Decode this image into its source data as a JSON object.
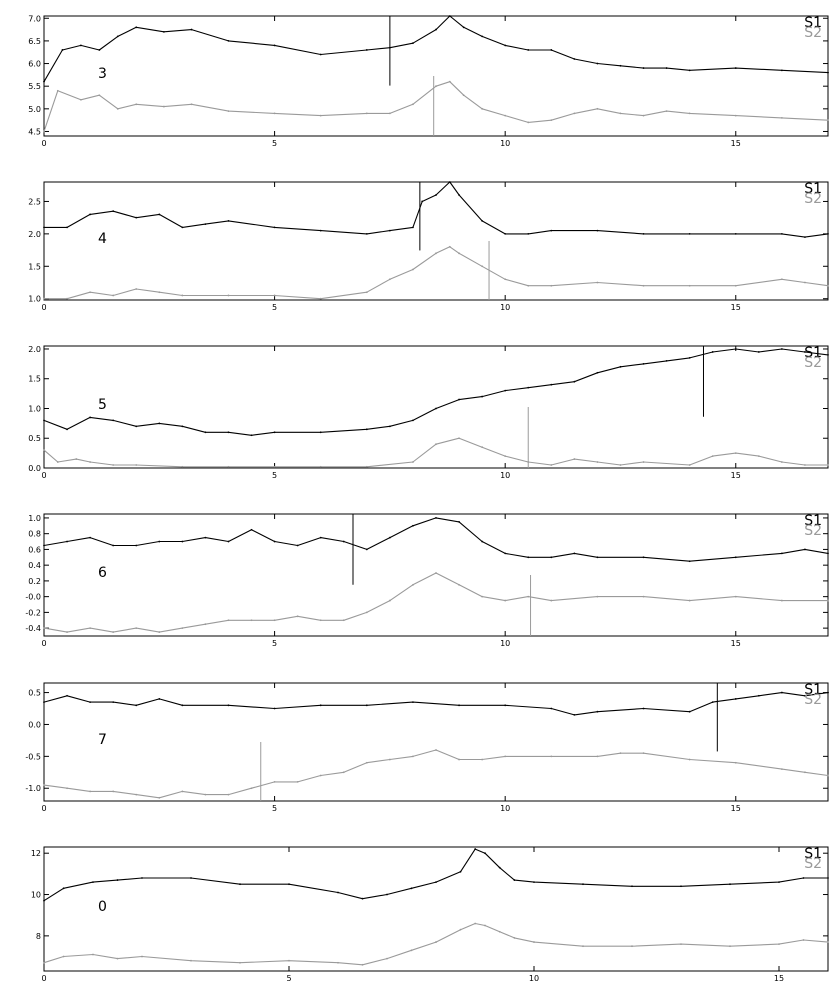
{
  "chart_data": [
    {
      "type": "line",
      "panel_label": "3",
      "xlim": [
        0,
        17
      ],
      "ylim": [
        4.4,
        7.05
      ],
      "x_ticks": [
        0,
        5,
        10,
        15
      ],
      "y_ticks": [
        4.5,
        5.0,
        5.5,
        6.0,
        6.5,
        7.0
      ],
      "x_tick_labels": [
        "0",
        "5",
        "10",
        "15"
      ],
      "y_tick_labels": [
        "4.5",
        "5.0",
        "5.5",
        "6.0",
        "6.5",
        "7.0"
      ],
      "grid": false,
      "legend_position": "top-right",
      "series": [
        {
          "name": "S1",
          "color": "#000000",
          "marker_x": 7.5,
          "x": [
            0,
            0.4,
            0.8,
            1.2,
            1.6,
            2.0,
            2.6,
            3.2,
            4.0,
            5.0,
            6.0,
            7.0,
            7.5,
            8.0,
            8.5,
            8.8,
            9.1,
            9.5,
            10.0,
            10.5,
            11.0,
            11.5,
            12.0,
            12.5,
            13.0,
            13.5,
            14.0,
            15.0,
            16.0,
            17.0
          ],
          "values": [
            5.6,
            6.3,
            6.4,
            6.3,
            6.6,
            6.8,
            6.7,
            6.75,
            6.5,
            6.4,
            6.2,
            6.3,
            6.35,
            6.45,
            6.75,
            7.05,
            6.8,
            6.6,
            6.4,
            6.3,
            6.3,
            6.1,
            6.0,
            5.95,
            5.9,
            5.9,
            5.85,
            5.9,
            5.85,
            5.8
          ]
        },
        {
          "name": "S2",
          "color": "#9a9a9a",
          "marker_x": 8.45,
          "x": [
            0,
            0.3,
            0.8,
            1.2,
            1.6,
            2.0,
            2.6,
            3.2,
            4.0,
            5.0,
            6.0,
            7.0,
            7.5,
            8.0,
            8.5,
            8.8,
            9.1,
            9.5,
            10.0,
            10.5,
            11.0,
            11.5,
            12.0,
            12.5,
            13.0,
            13.5,
            14.0,
            15.0,
            16.0,
            17.0
          ],
          "values": [
            4.5,
            5.4,
            5.2,
            5.3,
            5.0,
            5.1,
            5.05,
            5.1,
            4.95,
            4.9,
            4.85,
            4.9,
            4.9,
            5.1,
            5.5,
            5.6,
            5.3,
            5.0,
            4.85,
            4.7,
            4.75,
            4.9,
            5.0,
            4.9,
            4.85,
            4.95,
            4.9,
            4.85,
            4.8,
            4.75
          ]
        }
      ]
    },
    {
      "type": "line",
      "panel_label": "4",
      "xlim": [
        0,
        17
      ],
      "ylim": [
        0.98,
        2.8
      ],
      "x_ticks": [
        0,
        5,
        10,
        15
      ],
      "y_ticks": [
        1.0,
        1.5,
        2.0,
        2.5
      ],
      "x_tick_labels": [
        "0",
        "5",
        "10",
        "15"
      ],
      "y_tick_labels": [
        "1.0",
        "1.5",
        "2.0",
        "2.5"
      ],
      "grid": false,
      "legend_position": "top-right",
      "series": [
        {
          "name": "S1",
          "color": "#000000",
          "marker_x": 8.15,
          "x": [
            0,
            0.5,
            1.0,
            1.5,
            2.0,
            2.5,
            3.0,
            3.5,
            4.0,
            5.0,
            6.0,
            7.0,
            7.5,
            8.0,
            8.2,
            8.5,
            8.8,
            9.0,
            9.5,
            10.0,
            10.5,
            11.0,
            12.0,
            13.0,
            14.0,
            15.0,
            16.0,
            16.5,
            17.0
          ],
          "values": [
            2.1,
            2.1,
            2.3,
            2.35,
            2.25,
            2.3,
            2.1,
            2.15,
            2.2,
            2.1,
            2.05,
            2.0,
            2.05,
            2.1,
            2.5,
            2.6,
            2.8,
            2.6,
            2.2,
            2.0,
            2.0,
            2.05,
            2.05,
            2.0,
            2.0,
            2.0,
            2.0,
            1.95,
            2.0
          ]
        },
        {
          "name": "S2",
          "color": "#9a9a9a",
          "marker_x": 9.65,
          "x": [
            0,
            0.5,
            1.0,
            1.5,
            2.0,
            2.5,
            3.0,
            4.0,
            5.0,
            6.0,
            7.0,
            7.5,
            8.0,
            8.5,
            8.8,
            9.0,
            9.5,
            10.0,
            10.5,
            11.0,
            12.0,
            13.0,
            14.0,
            15.0,
            16.0,
            16.5,
            17.0
          ],
          "values": [
            1.0,
            1.0,
            1.1,
            1.05,
            1.15,
            1.1,
            1.05,
            1.05,
            1.05,
            1.0,
            1.1,
            1.3,
            1.45,
            1.7,
            1.8,
            1.7,
            1.5,
            1.3,
            1.2,
            1.2,
            1.25,
            1.2,
            1.2,
            1.2,
            1.3,
            1.25,
            1.2
          ]
        }
      ]
    },
    {
      "type": "line",
      "panel_label": "5",
      "xlim": [
        0,
        17
      ],
      "ylim": [
        0,
        2.05
      ],
      "x_ticks": [
        0,
        5,
        10,
        15
      ],
      "y_ticks": [
        0.0,
        0.5,
        1.0,
        1.5,
        2.0
      ],
      "x_tick_labels": [
        "0",
        "5",
        "10",
        "15"
      ],
      "y_tick_labels": [
        "0.0",
        "0.5",
        "1.0",
        "1.5",
        "2.0"
      ],
      "grid": false,
      "legend_position": "top-right",
      "series": [
        {
          "name": "S1",
          "color": "#000000",
          "marker_x": 14.3,
          "x": [
            0,
            0.5,
            1.0,
            1.5,
            2.0,
            2.5,
            3.0,
            3.5,
            4.0,
            4.5,
            5.0,
            6.0,
            7.0,
            7.5,
            8.0,
            8.5,
            9.0,
            9.5,
            10.0,
            10.5,
            11.0,
            11.5,
            12.0,
            12.5,
            13.0,
            13.5,
            14.0,
            14.5,
            15.0,
            15.5,
            16.0,
            16.5,
            17.0
          ],
          "values": [
            0.8,
            0.65,
            0.85,
            0.8,
            0.7,
            0.75,
            0.7,
            0.6,
            0.6,
            0.55,
            0.6,
            0.6,
            0.65,
            0.7,
            0.8,
            1.0,
            1.15,
            1.2,
            1.3,
            1.35,
            1.4,
            1.45,
            1.6,
            1.7,
            1.75,
            1.8,
            1.85,
            1.95,
            2.0,
            1.95,
            2.0,
            1.95,
            1.9
          ]
        },
        {
          "name": "S2",
          "color": "#9a9a9a",
          "marker_x": 10.5,
          "x": [
            0,
            0.3,
            0.7,
            1.0,
            1.5,
            2.0,
            3.0,
            4.0,
            5.0,
            6.0,
            7.0,
            8.0,
            8.5,
            9.0,
            9.5,
            10.0,
            10.5,
            11.0,
            11.5,
            12.0,
            12.5,
            13.0,
            14.0,
            14.5,
            15.0,
            15.5,
            16.0,
            16.5,
            17.0
          ],
          "values": [
            0.3,
            0.1,
            0.15,
            0.1,
            0.05,
            0.05,
            0.02,
            0.02,
            0.02,
            0.02,
            0.02,
            0.1,
            0.4,
            0.5,
            0.35,
            0.2,
            0.1,
            0.05,
            0.15,
            0.1,
            0.05,
            0.1,
            0.05,
            0.2,
            0.25,
            0.2,
            0.1,
            0.05,
            0.05
          ]
        }
      ]
    },
    {
      "type": "line",
      "panel_label": "6",
      "xlim": [
        0,
        17
      ],
      "ylim": [
        -0.5,
        1.05
      ],
      "x_ticks": [
        0,
        5,
        10,
        15
      ],
      "y_ticks": [
        -0.4,
        -0.2,
        0.0,
        0.2,
        0.4,
        0.6,
        0.8,
        1.0
      ],
      "x_tick_labels": [
        "0",
        "5",
        "10",
        "15"
      ],
      "y_tick_labels": [
        "-0.4",
        "-0.2",
        "-0.0",
        "0.2",
        "0.4",
        "0.6",
        "0.8",
        "1.0"
      ],
      "grid": false,
      "legend_position": "top-right",
      "series": [
        {
          "name": "S1",
          "color": "#000000",
          "marker_x": 6.7,
          "x": [
            0,
            0.5,
            1.0,
            1.5,
            2.0,
            2.5,
            3.0,
            3.5,
            4.0,
            4.5,
            5.0,
            5.5,
            6.0,
            6.5,
            7.0,
            7.5,
            8.0,
            8.5,
            9.0,
            9.5,
            10.0,
            10.5,
            11.0,
            11.5,
            12.0,
            13.0,
            14.0,
            15.0,
            16.0,
            16.5,
            17.0
          ],
          "values": [
            0.65,
            0.7,
            0.75,
            0.65,
            0.65,
            0.7,
            0.7,
            0.75,
            0.7,
            0.85,
            0.7,
            0.65,
            0.75,
            0.7,
            0.6,
            0.75,
            0.9,
            1.0,
            0.95,
            0.7,
            0.55,
            0.5,
            0.5,
            0.55,
            0.5,
            0.5,
            0.45,
            0.5,
            0.55,
            0.6,
            0.55
          ]
        },
        {
          "name": "S2",
          "color": "#9a9a9a",
          "marker_x": 10.55,
          "x": [
            0,
            0.5,
            1.0,
            1.5,
            2.0,
            2.5,
            3.0,
            3.5,
            4.0,
            4.5,
            5.0,
            5.5,
            6.0,
            6.5,
            7.0,
            7.5,
            8.0,
            8.5,
            9.0,
            9.5,
            10.0,
            10.5,
            11.0,
            12.0,
            13.0,
            14.0,
            15.0,
            16.0,
            17.0
          ],
          "values": [
            -0.4,
            -0.45,
            -0.4,
            -0.45,
            -0.4,
            -0.45,
            -0.4,
            -0.35,
            -0.3,
            -0.3,
            -0.3,
            -0.25,
            -0.3,
            -0.3,
            -0.2,
            -0.05,
            0.15,
            0.3,
            0.15,
            0.0,
            -0.05,
            0.0,
            -0.05,
            0.0,
            0.0,
            -0.05,
            0.0,
            -0.05,
            -0.05
          ]
        }
      ]
    },
    {
      "type": "line",
      "panel_label": "7",
      "xlim": [
        0,
        17
      ],
      "ylim": [
        -1.2,
        0.65
      ],
      "x_ticks": [
        0,
        5,
        10,
        15
      ],
      "y_ticks": [
        -1.0,
        -0.5,
        0.0,
        0.5
      ],
      "x_tick_labels": [
        "0",
        "5",
        "10",
        "15"
      ],
      "y_tick_labels": [
        "-1.0",
        "-0.5",
        "0.0",
        "0.5"
      ],
      "grid": false,
      "legend_position": "top-right",
      "series": [
        {
          "name": "S1",
          "color": "#000000",
          "marker_x": 14.6,
          "x": [
            0,
            0.5,
            1.0,
            1.5,
            2.0,
            2.5,
            3.0,
            4.0,
            5.0,
            6.0,
            7.0,
            8.0,
            9.0,
            10.0,
            11.0,
            11.5,
            12.0,
            13.0,
            14.0,
            14.5,
            15.0,
            15.5,
            16.0,
            16.5,
            17.0
          ],
          "values": [
            0.35,
            0.45,
            0.35,
            0.35,
            0.3,
            0.4,
            0.3,
            0.3,
            0.25,
            0.3,
            0.3,
            0.35,
            0.3,
            0.3,
            0.25,
            0.15,
            0.2,
            0.25,
            0.2,
            0.35,
            0.4,
            0.45,
            0.5,
            0.45,
            0.5
          ]
        },
        {
          "name": "S2",
          "color": "#9a9a9a",
          "marker_x": 4.7,
          "x": [
            0,
            0.5,
            1.0,
            1.5,
            2.0,
            2.5,
            3.0,
            3.5,
            4.0,
            4.5,
            5.0,
            5.5,
            6.0,
            6.5,
            7.0,
            7.5,
            8.0,
            8.5,
            9.0,
            9.5,
            10.0,
            11.0,
            12.0,
            12.5,
            13.0,
            14.0,
            15.0,
            16.0,
            16.5,
            17.0
          ],
          "values": [
            -0.95,
            -1.0,
            -1.05,
            -1.05,
            -1.1,
            -1.15,
            -1.05,
            -1.1,
            -1.1,
            -1.0,
            -0.9,
            -0.9,
            -0.8,
            -0.75,
            -0.6,
            -0.55,
            -0.5,
            -0.4,
            -0.55,
            -0.55,
            -0.5,
            -0.5,
            -0.5,
            -0.45,
            -0.45,
            -0.55,
            -0.6,
            -0.7,
            -0.75,
            -0.8
          ]
        }
      ]
    },
    {
      "type": "line",
      "panel_label": "0",
      "xlim": [
        0,
        16
      ],
      "ylim": [
        6.3,
        12.3
      ],
      "x_ticks": [
        0,
        5,
        10,
        15
      ],
      "y_ticks": [
        8,
        10,
        12
      ],
      "x_tick_labels": [
        "0",
        "5",
        "10",
        "15"
      ],
      "y_tick_labels": [
        "8",
        "10",
        "12"
      ],
      "grid": false,
      "legend_position": "top-right",
      "series": [
        {
          "name": "S1",
          "color": "#000000",
          "x": [
            0,
            0.4,
            1.0,
            1.5,
            2.0,
            3.0,
            4.0,
            5.0,
            6.0,
            6.5,
            7.0,
            7.5,
            8.0,
            8.5,
            8.8,
            9.0,
            9.3,
            9.6,
            10.0,
            11.0,
            12.0,
            13.0,
            14.0,
            15.0,
            15.5,
            16.0
          ],
          "values": [
            9.7,
            10.3,
            10.6,
            10.7,
            10.8,
            10.8,
            10.5,
            10.5,
            10.1,
            9.8,
            10.0,
            10.3,
            10.6,
            11.1,
            12.2,
            12.0,
            11.3,
            10.7,
            10.6,
            10.5,
            10.4,
            10.4,
            10.5,
            10.6,
            10.8,
            10.8
          ]
        },
        {
          "name": "S2",
          "color": "#9a9a9a",
          "x": [
            0,
            0.4,
            1.0,
            1.5,
            2.0,
            3.0,
            4.0,
            5.0,
            6.0,
            6.5,
            7.0,
            7.5,
            8.0,
            8.5,
            8.8,
            9.0,
            9.3,
            9.6,
            10.0,
            11.0,
            12.0,
            13.0,
            14.0,
            15.0,
            15.5,
            16.0
          ],
          "values": [
            6.7,
            7.0,
            7.1,
            6.9,
            7.0,
            6.8,
            6.7,
            6.8,
            6.7,
            6.6,
            6.9,
            7.3,
            7.7,
            8.3,
            8.6,
            8.5,
            8.2,
            7.9,
            7.7,
            7.5,
            7.5,
            7.6,
            7.5,
            7.6,
            7.8,
            7.7
          ]
        }
      ]
    }
  ]
}
